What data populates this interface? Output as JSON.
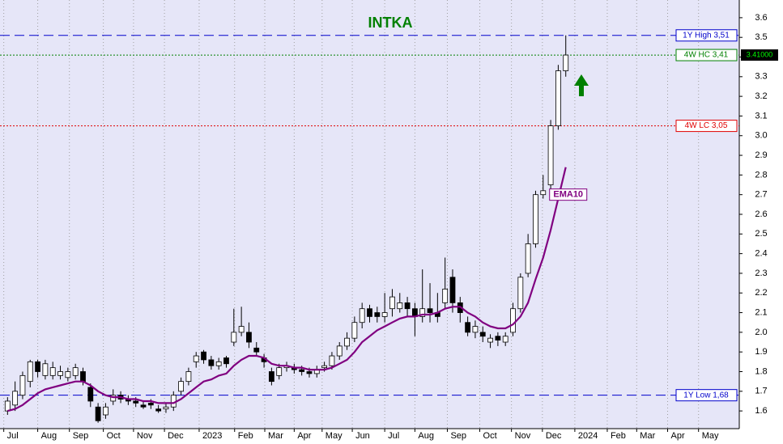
{
  "chart_data": {
    "type": "candlestick",
    "title": "INTKA",
    "open": [
      1.6,
      1.63,
      1.68,
      1.75,
      1.85,
      1.78,
      1.78,
      1.78,
      1.77,
      1.78,
      1.8,
      1.72,
      1.62,
      1.58,
      1.65,
      1.68,
      1.66,
      1.65,
      1.63,
      1.64,
      1.61,
      1.61,
      1.62,
      1.7,
      1.75,
      1.85,
      1.9,
      1.86,
      1.83,
      1.87,
      1.95,
      2.0,
      2.0,
      1.92,
      1.87,
      1.8,
      1.78,
      1.82,
      1.82,
      1.81,
      1.8,
      1.79,
      1.82,
      1.83,
      1.88,
      1.93,
      1.97,
      2.05,
      2.12,
      2.1,
      2.08,
      2.12,
      2.12,
      2.15,
      2.12,
      2.08,
      2.12,
      2.1,
      2.15,
      2.28,
      2.15,
      2.05,
      2.0,
      2.0,
      1.95,
      1.98,
      1.95,
      2.0,
      2.12,
      2.3,
      2.45,
      2.7,
      2.75,
      3.05,
      3.33
    ],
    "high": [
      1.67,
      1.75,
      1.8,
      1.86,
      1.86,
      1.86,
      1.85,
      1.83,
      1.82,
      1.84,
      1.82,
      1.74,
      1.64,
      1.64,
      1.71,
      1.7,
      1.68,
      1.67,
      1.65,
      1.66,
      1.63,
      1.64,
      1.7,
      1.77,
      1.82,
      1.9,
      1.91,
      1.88,
      1.87,
      1.88,
      2.12,
      2.13,
      2.05,
      1.95,
      1.89,
      1.82,
      1.84,
      1.85,
      1.84,
      1.83,
      1.82,
      1.83,
      1.85,
      1.9,
      1.95,
      2.0,
      2.08,
      2.15,
      2.14,
      2.13,
      2.2,
      2.22,
      2.2,
      2.18,
      2.15,
      2.32,
      2.25,
      2.2,
      2.38,
      2.32,
      2.18,
      2.08,
      2.06,
      2.03,
      1.99,
      2.0,
      2.0,
      2.15,
      2.3,
      2.5,
      2.72,
      2.8,
      3.08,
      3.36,
      3.51
    ],
    "low": [
      1.58,
      1.6,
      1.66,
      1.72,
      1.77,
      1.76,
      1.76,
      1.76,
      1.75,
      1.76,
      1.73,
      1.62,
      1.54,
      1.56,
      1.63,
      1.64,
      1.63,
      1.62,
      1.61,
      1.61,
      1.59,
      1.59,
      1.6,
      1.68,
      1.73,
      1.82,
      1.84,
      1.81,
      1.81,
      1.82,
      1.93,
      1.98,
      1.92,
      1.88,
      1.82,
      1.73,
      1.76,
      1.8,
      1.79,
      1.78,
      1.77,
      1.77,
      1.8,
      1.81,
      1.86,
      1.91,
      1.95,
      2.02,
      2.05,
      2.05,
      2.05,
      2.08,
      2.1,
      2.08,
      1.98,
      2.05,
      2.05,
      2.05,
      2.12,
      2.1,
      2.05,
      1.98,
      1.97,
      1.95,
      1.92,
      1.93,
      1.93,
      1.98,
      2.1,
      2.28,
      2.43,
      2.68,
      2.73,
      3.03,
      3.3
    ],
    "close": [
      1.65,
      1.7,
      1.78,
      1.85,
      1.8,
      1.84,
      1.82,
      1.8,
      1.8,
      1.82,
      1.75,
      1.65,
      1.55,
      1.62,
      1.68,
      1.66,
      1.65,
      1.64,
      1.62,
      1.63,
      1.6,
      1.62,
      1.68,
      1.75,
      1.8,
      1.88,
      1.86,
      1.83,
      1.85,
      1.84,
      2.0,
      2.03,
      1.95,
      1.9,
      1.85,
      1.75,
      1.82,
      1.83,
      1.81,
      1.8,
      1.79,
      1.81,
      1.83,
      1.88,
      1.93,
      1.97,
      2.05,
      2.12,
      2.08,
      2.08,
      2.1,
      2.18,
      2.15,
      2.12,
      2.08,
      2.12,
      2.1,
      2.08,
      2.22,
      2.15,
      2.1,
      2.0,
      2.03,
      1.98,
      1.97,
      1.96,
      1.98,
      2.12,
      2.28,
      2.45,
      2.7,
      2.72,
      3.05,
      3.33,
      3.41
    ],
    "series": [
      {
        "name": "EMA10",
        "color": "#800080",
        "values": [
          1.6,
          1.61,
          1.63,
          1.66,
          1.69,
          1.71,
          1.72,
          1.73,
          1.74,
          1.75,
          1.75,
          1.73,
          1.7,
          1.68,
          1.67,
          1.67,
          1.66,
          1.66,
          1.65,
          1.65,
          1.64,
          1.64,
          1.64,
          1.66,
          1.69,
          1.72,
          1.75,
          1.76,
          1.78,
          1.79,
          1.83,
          1.86,
          1.88,
          1.88,
          1.87,
          1.84,
          1.83,
          1.83,
          1.82,
          1.82,
          1.81,
          1.81,
          1.81,
          1.82,
          1.84,
          1.86,
          1.9,
          1.95,
          1.98,
          2.01,
          2.03,
          2.05,
          2.07,
          2.08,
          2.08,
          2.09,
          2.09,
          2.1,
          2.12,
          2.13,
          2.13,
          2.1,
          2.08,
          2.05,
          2.03,
          2.02,
          2.02,
          2.04,
          2.08,
          2.15,
          2.27,
          2.38,
          2.52,
          2.68,
          2.84
        ]
      }
    ],
    "levels": [
      {
        "label": "1Y High 3,51",
        "value": 3.51,
        "color": "#0000cc"
      },
      {
        "label": "4W HC 3,41",
        "value": 3.41,
        "color": "#008000"
      },
      {
        "label": "4W LC 3,05",
        "value": 3.05,
        "color": "#e00000"
      },
      {
        "label": "1Y Low 1,68",
        "value": 1.68,
        "color": "#0000cc"
      }
    ],
    "last_price": {
      "value": 3.41,
      "label": "3.41000"
    },
    "xlim": [
      -1,
      97
    ],
    "xticks": [
      {
        "value": -0.5,
        "label": "Jul"
      },
      {
        "value": 4,
        "label": "Aug"
      },
      {
        "value": 8.2,
        "label": "Sep"
      },
      {
        "value": 12.7,
        "label": "Oct"
      },
      {
        "value": 16.7,
        "label": "Nov"
      },
      {
        "value": 20.8,
        "label": "Dec"
      },
      {
        "value": 25.4,
        "label": "2023"
      },
      {
        "value": 30.1,
        "label": "Feb"
      },
      {
        "value": 34.1,
        "label": "Mar"
      },
      {
        "value": 38,
        "label": "Apr"
      },
      {
        "value": 41.7,
        "label": "May"
      },
      {
        "value": 45.7,
        "label": "Jun"
      },
      {
        "value": 50,
        "label": "Jul"
      },
      {
        "value": 54,
        "label": "Aug"
      },
      {
        "value": 58.3,
        "label": "Sep"
      },
      {
        "value": 62.6,
        "label": "Oct"
      },
      {
        "value": 66.8,
        "label": "Nov"
      },
      {
        "value": 70.9,
        "label": "Dec"
      },
      {
        "value": 75.2,
        "label": "2024"
      },
      {
        "value": 79.5,
        "label": "Feb"
      },
      {
        "value": 83.4,
        "label": "Mar"
      },
      {
        "value": 87.5,
        "label": "Apr"
      },
      {
        "value": 91.6,
        "label": "May"
      }
    ],
    "ylim": [
      1.51,
      3.69
    ],
    "yticks": [
      1.6,
      1.7,
      1.8,
      1.9,
      {
        "value": 2,
        "label": "2.0"
      },
      2.1,
      2.2,
      2.3,
      2.4,
      2.5,
      2.6,
      2.7,
      2.8,
      2.9,
      {
        "value": 3,
        "label": "3.0"
      },
      3.1,
      3.2,
      3.3,
      3.4,
      3.5,
      3.6
    ],
    "grid": true,
    "up_color": "#ffffff",
    "down_color": "#000000",
    "background": "#e6e6f8"
  }
}
